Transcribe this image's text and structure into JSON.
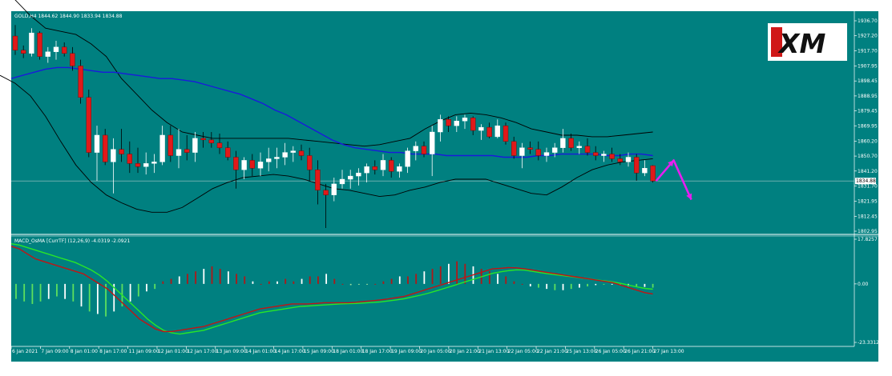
{
  "brand": {
    "logo_text": "XM"
  },
  "colors": {
    "background": "#ffffff",
    "plot_bg": "#008080",
    "bull_candle": "#ffffff",
    "bear_candle": "#e01919",
    "ma_blue": "#1a1adb",
    "bollinger": "#000000",
    "arrow": "#e61ef0",
    "macd_red": "#c21414",
    "macd_green": "#28e628",
    "hist_green": "#5de05d",
    "hist_white": "#ffffff",
    "hist_red": "#b01818",
    "text": "#ffffff"
  },
  "symbol_info": "GOLD,H4  1844.62 1844.90 1833.94 1834.88",
  "indicator_info": "MACD_OsMA [CurrTF] (12,26,9) -4.0319 -2.0921",
  "chart_data": [
    {
      "type": "candlestick",
      "title": "GOLD,H4",
      "ohlc_header": [
        1844.62,
        1844.9,
        1833.94,
        1834.88
      ],
      "ylim": [
        1802.95,
        1936.7
      ],
      "y_ticks": [
        "1936.70",
        "1927.20",
        "1917.70",
        "1907.95",
        "1898.45",
        "1888.95",
        "1879.45",
        "1869.95",
        "1860.20",
        "1850.70",
        "1841.20",
        "1831.70",
        "1821.95",
        "1812.45",
        "1802.95"
      ],
      "current_price_label": "1834.88",
      "x_tick_labels": [
        "6 Jan 2021",
        "7 Jan 09:00",
        "8 Jan 01:00",
        "8 Jan 17:00",
        "11 Jan 09:00",
        "12 Jan 01:00",
        "12 Jan 17:00",
        "13 Jan 09:00",
        "14 Jan 01:00",
        "14 Jan 17:00",
        "15 Jan 09:00",
        "18 Jan 01:00",
        "18 Jan 17:00",
        "19 Jan 09:00",
        "20 Jan 05:00",
        "20 Jan 21:00",
        "21 Jan 13:00",
        "22 Jan 05:00",
        "22 Jan 21:00",
        "25 Jan 13:00",
        "26 Jan 05:00",
        "26 Jan 21:00",
        "27 Jan 13:00"
      ],
      "candles": [
        [
          1927,
          1934,
          1915,
          1918
        ],
        [
          1918,
          1921,
          1913,
          1916
        ],
        [
          1916,
          1932,
          1914,
          1929
        ],
        [
          1929,
          1930,
          1912,
          1914
        ],
        [
          1914,
          1920,
          1910,
          1917
        ],
        [
          1917,
          1924,
          1912,
          1920
        ],
        [
          1920,
          1923,
          1914,
          1916
        ],
        [
          1916,
          1920,
          1905,
          1908
        ],
        [
          1908,
          1912,
          1884,
          1888
        ],
        [
          1888,
          1893,
          1850,
          1853
        ],
        [
          1853,
          1870,
          1835,
          1864
        ],
        [
          1864,
          1868,
          1845,
          1847
        ],
        [
          1847,
          1862,
          1827,
          1855
        ],
        [
          1855,
          1868,
          1847,
          1852
        ],
        [
          1852,
          1860,
          1840,
          1846
        ],
        [
          1846,
          1856,
          1840,
          1844
        ],
        [
          1844,
          1853,
          1839,
          1846
        ],
        [
          1846,
          1852,
          1840,
          1847
        ],
        [
          1847,
          1870,
          1845,
          1864
        ],
        [
          1864,
          1870,
          1847,
          1851
        ],
        [
          1851,
          1868,
          1843,
          1855
        ],
        [
          1855,
          1864,
          1848,
          1853
        ],
        [
          1853,
          1866,
          1847,
          1862
        ],
        [
          1862,
          1866,
          1856,
          1861
        ],
        [
          1861,
          1866,
          1856,
          1859
        ],
        [
          1859,
          1865,
          1852,
          1856
        ],
        [
          1856,
          1860,
          1848,
          1850
        ],
        [
          1850,
          1854,
          1830,
          1842
        ],
        [
          1842,
          1850,
          1836,
          1848
        ],
        [
          1848,
          1852,
          1838,
          1843
        ],
        [
          1843,
          1853,
          1838,
          1847
        ],
        [
          1847,
          1856,
          1841,
          1849
        ],
        [
          1849,
          1856,
          1843,
          1850
        ],
        [
          1850,
          1859,
          1845,
          1853
        ],
        [
          1853,
          1857,
          1847,
          1854
        ],
        [
          1854,
          1858,
          1848,
          1851
        ],
        [
          1851,
          1856,
          1835,
          1842
        ],
        [
          1842,
          1848,
          1820,
          1829
        ],
        [
          1829,
          1833,
          1805,
          1826
        ],
        [
          1826,
          1837,
          1822,
          1833
        ],
        [
          1833,
          1842,
          1830,
          1836
        ],
        [
          1836,
          1842,
          1830,
          1838
        ],
        [
          1838,
          1843,
          1832,
          1840
        ],
        [
          1840,
          1846,
          1834,
          1844
        ],
        [
          1844,
          1848,
          1839,
          1842
        ],
        [
          1842,
          1852,
          1838,
          1848
        ],
        [
          1848,
          1850,
          1837,
          1841
        ],
        [
          1841,
          1846,
          1837,
          1844
        ],
        [
          1844,
          1856,
          1840,
          1854
        ],
        [
          1854,
          1860,
          1848,
          1857
        ],
        [
          1857,
          1860,
          1850,
          1852
        ],
        [
          1852,
          1870,
          1838,
          1866
        ],
        [
          1866,
          1877,
          1860,
          1874
        ],
        [
          1874,
          1876,
          1866,
          1870
        ],
        [
          1870,
          1876,
          1866,
          1873
        ],
        [
          1873,
          1877,
          1868,
          1875
        ],
        [
          1875,
          1876,
          1864,
          1867
        ],
        [
          1867,
          1871,
          1861,
          1869
        ],
        [
          1869,
          1872,
          1862,
          1863
        ],
        [
          1863,
          1874,
          1862,
          1870
        ],
        [
          1870,
          1872,
          1858,
          1860
        ],
        [
          1860,
          1863,
          1849,
          1851
        ],
        [
          1851,
          1859,
          1843,
          1856
        ],
        [
          1856,
          1860,
          1852,
          1855
        ],
        [
          1855,
          1860,
          1848,
          1851
        ],
        [
          1851,
          1856,
          1847,
          1853
        ],
        [
          1853,
          1859,
          1850,
          1856
        ],
        [
          1856,
          1868,
          1853,
          1862
        ],
        [
          1862,
          1865,
          1854,
          1856
        ],
        [
          1856,
          1860,
          1852,
          1857
        ],
        [
          1857,
          1862,
          1851,
          1853
        ],
        [
          1853,
          1857,
          1848,
          1851
        ],
        [
          1851,
          1854,
          1847,
          1852
        ],
        [
          1852,
          1856,
          1847,
          1849
        ],
        [
          1849,
          1852,
          1845,
          1847
        ],
        [
          1847,
          1853,
          1844,
          1850
        ],
        [
          1850,
          1852,
          1835,
          1840
        ],
        [
          1840,
          1848,
          1838,
          1843
        ],
        [
          1844.62,
          1844.9,
          1833.94,
          1834.88
        ]
      ],
      "ma_blue": [
        1900,
        1902,
        1904,
        1906,
        1907,
        1907,
        1906,
        1905,
        1904,
        1904,
        1903,
        1902,
        1901,
        1900,
        1900,
        1899,
        1898,
        1896,
        1894,
        1892,
        1890,
        1887,
        1884,
        1880,
        1877,
        1873,
        1869,
        1865,
        1861,
        1858,
        1856,
        1855,
        1854,
        1853,
        1853,
        1852,
        1852,
        1852,
        1851,
        1851,
        1851,
        1851,
        1851,
        1850,
        1850,
        1850,
        1851,
        1851,
        1852,
        1852,
        1852,
        1852,
        1851,
        1851,
        1852,
        1852,
        1851
      ],
      "bb_upper": [
        1958,
        1950,
        1940,
        1932,
        1930,
        1928,
        1922,
        1914,
        1900,
        1890,
        1880,
        1872,
        1866,
        1864,
        1862,
        1862,
        1862,
        1862,
        1862,
        1862,
        1861,
        1860,
        1859,
        1858,
        1857,
        1858,
        1860,
        1862,
        1868,
        1873,
        1877,
        1878,
        1877,
        1875,
        1872,
        1868,
        1866,
        1864,
        1864,
        1863,
        1863,
        1864,
        1865,
        1866
      ],
      "bb_lower": [
        1902,
        1897,
        1889,
        1876,
        1860,
        1845,
        1834,
        1826,
        1821,
        1817,
        1815,
        1815,
        1818,
        1824,
        1830,
        1834,
        1837,
        1838,
        1839,
        1838,
        1836,
        1833,
        1830,
        1829,
        1827,
        1825,
        1826,
        1829,
        1831,
        1834,
        1836,
        1836,
        1836,
        1833,
        1830,
        1827,
        1826,
        1831,
        1837,
        1842,
        1845,
        1847,
        1848,
        1849
      ],
      "arrow": {
        "points": [
          [
            1834.88,
            0
          ],
          [
            1848,
            1
          ],
          [
            1823,
            2
          ]
        ]
      }
    },
    {
      "type": "macd",
      "title": "MACD_OsMA [CurrTF] (12,26,9)",
      "values_header": [
        -4.0319,
        -2.0921
      ],
      "ylim": [
        -23.3312,
        17.8257
      ],
      "y_ticks": [
        "17.8257",
        "0.00",
        "-23.3312"
      ],
      "histogram": [
        -6,
        -7,
        -8,
        -7,
        -6,
        -5,
        -6,
        -7,
        -9,
        -11,
        -12,
        -13,
        -11,
        -9,
        -7,
        -5,
        -3,
        -2,
        1,
        2,
        3,
        4,
        5,
        6,
        7,
        6,
        5,
        4,
        3,
        1,
        0,
        1,
        1,
        2,
        1,
        2,
        3,
        3,
        4,
        2,
        0,
        -0.5,
        -0.3,
        -0.2,
        0,
        1,
        2,
        3,
        3,
        4,
        5,
        6,
        7,
        8,
        9,
        8,
        7,
        6,
        5,
        4,
        3,
        1,
        0,
        -1,
        -1.5,
        -2,
        -2.5,
        -2.5,
        -2,
        -1.5,
        -1,
        -0.5,
        -0.3,
        -0.2,
        -0.5,
        -0.8,
        -1,
        -1.2,
        -1.5
      ],
      "macd_line": [
        15,
        14,
        12,
        10,
        9,
        8,
        7,
        6,
        5,
        4,
        2,
        0,
        -2,
        -5,
        -8,
        -11,
        -14,
        -16,
        -18,
        -19,
        -19,
        -18.5,
        -18,
        -17.5,
        -17,
        -16,
        -15,
        -14,
        -13,
        -12,
        -11,
        -10,
        -9.5,
        -9,
        -8.5,
        -8,
        -8,
        -8,
        -7.8,
        -7.5,
        -7.5,
        -7.5,
        -7.5,
        -7.3,
        -7,
        -6.7,
        -6.4,
        -6,
        -5.5,
        -5,
        -4,
        -3,
        -2,
        -1,
        0,
        1,
        2,
        3,
        4,
        5,
        6,
        6.2,
        6.5,
        6.4,
        6,
        5.5,
        5,
        4.5,
        4,
        3.5,
        3,
        2.5,
        2,
        1.5,
        1,
        0.5,
        -0.5,
        -1.5,
        -2.5,
        -3.5,
        -4
      ],
      "signal_line": [
        16,
        15.5,
        14.5,
        13.5,
        12.5,
        11.5,
        10.5,
        9.5,
        8.5,
        7,
        5.5,
        3.5,
        1,
        -2,
        -5,
        -8,
        -11,
        -14,
        -16.5,
        -18.5,
        -19.5,
        -20,
        -19.5,
        -19,
        -18.5,
        -17.5,
        -16.5,
        -15.5,
        -14.5,
        -13.5,
        -12.5,
        -11.5,
        -11,
        -10.5,
        -10,
        -9.5,
        -9,
        -8.8,
        -8.6,
        -8.4,
        -8.2,
        -8,
        -7.9,
        -7.8,
        -7.6,
        -7.4,
        -7.2,
        -6.8,
        -6.4,
        -5.9,
        -5.2,
        -4.5,
        -3.7,
        -2.8,
        -1.8,
        -0.8,
        0.2,
        1.2,
        2.2,
        3.2,
        4.2,
        4.8,
        5.3,
        5.6,
        5.5,
        5,
        4.5,
        4,
        3.6,
        3.2,
        2.8,
        2.4,
        2,
        1.6,
        1.2,
        0.8,
        0.2,
        -0.5,
        -1.2,
        -1.8,
        -2.1
      ]
    }
  ]
}
